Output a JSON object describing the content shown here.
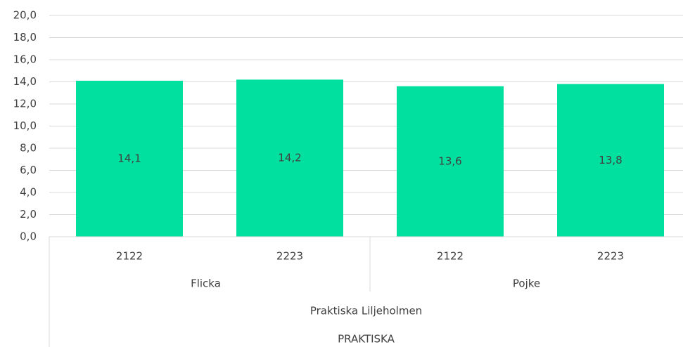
{
  "chart_data": {
    "type": "bar",
    "categories": [
      "2122",
      "2223",
      "2122",
      "2223"
    ],
    "category_levels": [
      [
        "Flicka",
        "Pojke"
      ],
      [
        "Praktiska Liljeholmen"
      ],
      [
        "PRAKTISKA"
      ]
    ],
    "values": [
      14.1,
      14.2,
      13.6,
      13.8
    ],
    "value_labels": [
      "14,1",
      "14,2",
      "13,6",
      "13,8"
    ],
    "color": "#02e09f",
    "ylim": [
      0,
      20
    ],
    "yticks": [
      {
        "value": 0,
        "label": "0,0"
      },
      {
        "value": 2,
        "label": "2,0"
      },
      {
        "value": 4,
        "label": "4,0"
      },
      {
        "value": 6,
        "label": "6,0"
      },
      {
        "value": 8,
        "label": "8,0"
      },
      {
        "value": 10,
        "label": "10,0"
      },
      {
        "value": 12,
        "label": "12,0"
      },
      {
        "value": 14,
        "label": "14,0"
      },
      {
        "value": 16,
        "label": "16,0"
      },
      {
        "value": 18,
        "label": "18,0"
      },
      {
        "value": 20,
        "label": "20,0"
      }
    ],
    "grid": true
  }
}
